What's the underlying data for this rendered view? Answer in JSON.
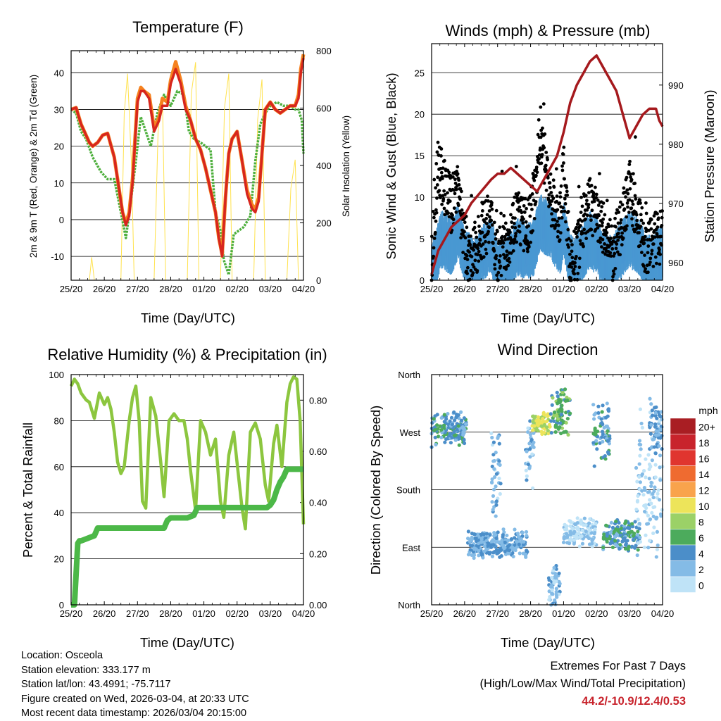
{
  "colors": {
    "temp2m": "#d7261e",
    "temp9m": "#f5821f",
    "dewpoint": "#4daf3c",
    "solar": "#ffe24d",
    "wind": "#4a98d2",
    "gust": "#000000",
    "pressure": "#a5191d",
    "rh": "#8cc63f",
    "precip": "#4cb848",
    "extremes": "#c8232c"
  },
  "x_ticks": [
    "25/20",
    "26/20",
    "27/20",
    "28/20",
    "01/20",
    "02/20",
    "03/20",
    "04/20"
  ],
  "xlabel": "Time (Day/UTC)",
  "chart_data": [
    {
      "type": "line",
      "title": "Temperature (F)",
      "xlabel": "Time (Day/UTC)",
      "ylabel": "2m & 9m T (Red, Orange) & 2m Td (Green)",
      "ylim": [
        -16.5,
        46
      ],
      "yticks": [
        -10,
        0,
        10,
        20,
        30,
        40
      ],
      "y2label": "Solar Insolation (Yellow)",
      "y2lim": [
        0,
        800
      ],
      "y2ticks": [
        0,
        200,
        400,
        600,
        800
      ],
      "x_unit": "days since 25/20 UTC",
      "xlim": [
        0,
        7
      ],
      "series": [
        {
          "name": "2m T",
          "color_key": "temp2m",
          "x": [
            0,
            0.15,
            0.3,
            0.45,
            0.55,
            0.65,
            0.8,
            0.95,
            1.1,
            1.3,
            1.45,
            1.55,
            1.65,
            1.75,
            1.85,
            2.0,
            2.1,
            2.2,
            2.35,
            2.5,
            2.65,
            2.75,
            2.9,
            3.0,
            3.15,
            3.3,
            3.45,
            3.6,
            3.75,
            3.9,
            4.05,
            4.2,
            4.35,
            4.45,
            4.55,
            4.65,
            4.75,
            4.85,
            5.0,
            5.15,
            5.3,
            5.45,
            5.55,
            5.65,
            5.75,
            5.85,
            6.0,
            6.15,
            6.3,
            6.45,
            6.6,
            6.75,
            6.85,
            6.92,
            7.0
          ],
          "values": [
            30,
            30.5,
            26,
            23,
            21,
            20,
            21,
            23,
            23.5,
            17,
            8,
            2,
            -1.5,
            1,
            10,
            32,
            35,
            35,
            33,
            24,
            27,
            31,
            31,
            37,
            41,
            37,
            30,
            27,
            22,
            19,
            14,
            8,
            2,
            -5,
            -10,
            6,
            18,
            22,
            24,
            16,
            7,
            3,
            2,
            5,
            18,
            30,
            32,
            30,
            29,
            30,
            31,
            31,
            33,
            40,
            44
          ]
        },
        {
          "name": "9m T",
          "color_key": "temp9m",
          "x": [
            0,
            0.15,
            0.3,
            0.45,
            0.55,
            0.65,
            0.8,
            0.95,
            1.1,
            1.3,
            1.45,
            1.55,
            1.65,
            1.75,
            1.85,
            2.0,
            2.1,
            2.2,
            2.35,
            2.5,
            2.65,
            2.75,
            2.9,
            3.0,
            3.15,
            3.3,
            3.45,
            3.6,
            3.75,
            3.9,
            4.05,
            4.2,
            4.35,
            4.45,
            4.55,
            4.65,
            4.75,
            4.85,
            5.0,
            5.15,
            5.3,
            5.45,
            5.55,
            5.65,
            5.75,
            5.85,
            6.0,
            6.15,
            6.3,
            6.45,
            6.6,
            6.75,
            6.85,
            6.92,
            7.0
          ],
          "values": [
            30,
            30.5,
            26,
            23,
            21,
            20,
            21,
            23,
            23.5,
            17,
            8,
            2,
            -1,
            2,
            11,
            33,
            36,
            35,
            34,
            25,
            28,
            33,
            32,
            38,
            43,
            38,
            31,
            27,
            22,
            19,
            14,
            8,
            2,
            -5,
            -9.5,
            6,
            18,
            22,
            24,
            16,
            8,
            4,
            3,
            6,
            18,
            30,
            32,
            30,
            29,
            30,
            31,
            31,
            34,
            41,
            45
          ]
        },
        {
          "name": "2m Td",
          "color_key": "dewpoint",
          "x": [
            0,
            0.15,
            0.3,
            0.45,
            0.65,
            0.9,
            1.1,
            1.3,
            1.5,
            1.65,
            1.8,
            1.95,
            2.1,
            2.25,
            2.4,
            2.6,
            2.8,
            3.0,
            3.2,
            3.4,
            3.55,
            3.7,
            3.9,
            4.05,
            4.2,
            4.35,
            4.5,
            4.6,
            4.75,
            4.9,
            5.05,
            5.2,
            5.4,
            5.55,
            5.7,
            5.85,
            6.0,
            6.2,
            6.4,
            6.6,
            6.75,
            6.85,
            6.95,
            7.0
          ],
          "values": [
            30,
            29,
            24,
            22,
            17,
            13,
            11,
            11,
            2,
            -5,
            5,
            16,
            28,
            24,
            20,
            29,
            34,
            31,
            35,
            34,
            24,
            22,
            21,
            20,
            19,
            2,
            -3,
            -11,
            -15,
            -4,
            -3,
            -2,
            1,
            16,
            26,
            29,
            31,
            32,
            31,
            31,
            30,
            30,
            27,
            18
          ]
        },
        {
          "name": "Solar Insolation",
          "axis": "y2",
          "color_key": "solar",
          "x": [
            0.55,
            0.62,
            0.7,
            1.5,
            1.6,
            1.7,
            1.82,
            1.9,
            2.5,
            2.62,
            2.75,
            2.85,
            3.5,
            3.62,
            3.75,
            3.85,
            4.5,
            4.62,
            4.75,
            4.85,
            5.5,
            5.62,
            5.75,
            5.85,
            6.5,
            6.62,
            6.75,
            6.85
          ],
          "values": [
            0,
            80,
            0,
            0,
            580,
            720,
            400,
            0,
            0,
            520,
            640,
            0,
            0,
            650,
            760,
            0,
            0,
            600,
            720,
            0,
            0,
            560,
            700,
            0,
            0,
            320,
            420,
            0
          ]
        }
      ]
    },
    {
      "type": "scatter",
      "title": "Winds (mph) & Pressure (mb)",
      "xlabel": "Time (Day/UTC)",
      "ylabel": "Sonic Wind & Gust (Blue, Black)",
      "ylim": [
        0,
        28.5
      ],
      "yticks": [
        0,
        5,
        10,
        15,
        20,
        25
      ],
      "y2label": "Station Pressure (Maroon)",
      "y2lim": [
        957.0,
        997.0
      ],
      "y2ticks": [
        960,
        970,
        980,
        990
      ],
      "xlim": [
        0,
        7
      ],
      "series": [
        {
          "name": "Sonic Wind (mean)",
          "color_key": "wind",
          "x": [
            0,
            0.3,
            0.6,
            0.8,
            1.0,
            1.3,
            1.5,
            1.8,
            2.0,
            2.3,
            2.6,
            2.9,
            3.1,
            3.3,
            3.6,
            3.9,
            4.0,
            4.2,
            4.4,
            4.6,
            4.8,
            5.0,
            5.3,
            5.5,
            5.8,
            6.0,
            6.3,
            6.5,
            6.7,
            6.9,
            7.0
          ],
          "values": [
            1,
            5,
            4,
            6,
            3,
            1.5,
            3,
            4.5,
            1,
            2,
            4,
            3.5,
            4,
            7,
            6,
            4,
            6.5,
            2,
            2,
            3.5,
            5,
            4,
            2,
            2,
            4,
            5,
            4,
            2,
            2,
            3,
            3
          ]
        },
        {
          "name": "Gust (mean)",
          "color_key": "gust",
          "x": [
            0,
            0.2,
            0.4,
            0.6,
            0.8,
            1.0,
            1.2,
            1.5,
            1.8,
            2.0,
            2.3,
            2.6,
            2.9,
            3.1,
            3.3,
            3.6,
            3.9,
            4.0,
            4.2,
            4.4,
            4.6,
            4.8,
            5.0,
            5.3,
            5.5,
            5.8,
            6.0,
            6.3,
            6.5,
            6.7,
            6.9,
            7.0
          ],
          "values": [
            2,
            14,
            11,
            9,
            12,
            4,
            2,
            6,
            7,
            3,
            5,
            8,
            6,
            10,
            18,
            10,
            7,
            13,
            2,
            3,
            7,
            9,
            8,
            5,
            3,
            8,
            11,
            7,
            3,
            5,
            5,
            5
          ]
        },
        {
          "name": "Station Pressure",
          "axis": "y2",
          "color_key": "pressure",
          "x": [
            0,
            0.2,
            0.4,
            0.6,
            0.8,
            1.0,
            1.2,
            1.5,
            1.8,
            2.0,
            2.2,
            2.4,
            2.6,
            2.8,
            3.0,
            3.2,
            3.4,
            3.6,
            3.8,
            4.0,
            4.2,
            4.4,
            4.6,
            4.8,
            5.0,
            5.2,
            5.4,
            5.6,
            5.8,
            6.0,
            6.2,
            6.4,
            6.6,
            6.8,
            6.9,
            7.0
          ],
          "values": [
            958,
            962,
            964,
            966,
            967,
            968,
            970,
            972,
            974,
            975,
            975,
            976,
            975,
            974,
            973,
            972,
            974,
            976,
            978,
            982,
            987,
            990,
            992,
            994,
            995,
            993,
            991,
            989,
            985,
            981,
            983,
            985,
            986,
            986,
            984,
            983
          ]
        }
      ]
    },
    {
      "type": "line",
      "title": "Relative Humidity (%) & Precipitation (in)",
      "xlabel": "Time (Day/UTC)",
      "ylabel": "Percent & Total Rainfall",
      "ylim": [
        0,
        100
      ],
      "yticks": [
        0,
        20,
        40,
        60,
        80,
        100
      ],
      "y2lim": [
        0,
        0.9
      ],
      "y2ticks": [
        "0.00",
        "0.20",
        "0.40",
        "0.60",
        "0.80"
      ],
      "xlim": [
        0,
        7
      ],
      "series": [
        {
          "name": "Relative Humidity",
          "color_key": "rh",
          "x": [
            0,
            0.1,
            0.2,
            0.3,
            0.45,
            0.55,
            0.7,
            0.85,
            1.0,
            1.1,
            1.2,
            1.3,
            1.4,
            1.5,
            1.6,
            1.75,
            1.85,
            1.95,
            2.05,
            2.15,
            2.25,
            2.4,
            2.55,
            2.7,
            2.8,
            2.95,
            3.1,
            3.25,
            3.4,
            3.5,
            3.6,
            3.75,
            3.9,
            4.05,
            4.2,
            4.35,
            4.5,
            4.6,
            4.75,
            4.9,
            5.05,
            5.15,
            5.25,
            5.4,
            5.55,
            5.7,
            5.85,
            5.95,
            6.1,
            6.2,
            6.35,
            6.5,
            6.6,
            6.7,
            6.8,
            6.9,
            7.0
          ],
          "values": [
            95,
            98,
            96,
            92,
            89,
            88,
            81,
            92,
            87,
            90,
            85,
            75,
            62,
            57,
            60,
            80,
            90,
            95,
            80,
            45,
            42,
            90,
            82,
            62,
            47,
            80,
            83,
            80,
            80,
            72,
            58,
            41,
            80,
            75,
            65,
            72,
            45,
            38,
            65,
            75,
            55,
            42,
            33,
            75,
            79,
            72,
            52,
            45,
            70,
            78,
            60,
            88,
            96,
            99,
            98,
            80,
            35
          ]
        },
        {
          "name": "Total Precipitation",
          "axis": "y2",
          "color_key": "precip",
          "x": [
            0,
            0.1,
            0.2,
            0.25,
            0.3,
            0.5,
            0.7,
            0.8,
            1.0,
            1.5,
            2.0,
            2.5,
            2.8,
            2.9,
            3.0,
            3.2,
            3.5,
            3.7,
            3.8,
            3.9,
            4.0,
            4.5,
            5.0,
            5.5,
            5.9,
            6.0,
            6.1,
            6.2,
            6.3,
            6.4,
            6.5,
            6.7,
            6.9,
            7.0
          ],
          "values": [
            0,
            0,
            0.24,
            0.25,
            0.25,
            0.26,
            0.27,
            0.3,
            0.3,
            0.3,
            0.3,
            0.3,
            0.3,
            0.33,
            0.34,
            0.34,
            0.34,
            0.35,
            0.38,
            0.38,
            0.38,
            0.38,
            0.38,
            0.38,
            0.38,
            0.39,
            0.41,
            0.45,
            0.48,
            0.5,
            0.53,
            0.53,
            0.53,
            0.53
          ]
        }
      ]
    },
    {
      "type": "scatter",
      "title": "Wind Direction",
      "xlabel": "Time (Day/UTC)",
      "ylabel": "Direction (Colored By Speed)",
      "yticks": [
        "North",
        "West",
        "South",
        "East",
        "North"
      ],
      "ylim_degrees": [
        360,
        0
      ],
      "xlim": [
        0,
        7
      ],
      "color_scale": {
        "title": "mph",
        "labels": [
          "20+",
          "18",
          "16",
          "14",
          "12",
          "10",
          "8",
          "6",
          "4",
          "2",
          "0"
        ],
        "colors": [
          "#a91e23",
          "#c8232c",
          "#e0352f",
          "#ef6b30",
          "#f9a34c",
          "#ede45a",
          "#9bd167",
          "#4cab5c",
          "#4b8ec9",
          "#84bbe6",
          "#bfe3f7"
        ]
      },
      "clusters": [
        {
          "x_start": 0.0,
          "x_end": 1.05,
          "dir_center": 275,
          "dir_spread": 30,
          "speed": 4
        },
        {
          "x_start": 1.1,
          "x_end": 2.9,
          "dir_center": 95,
          "dir_spread": 25,
          "speed": 3
        },
        {
          "x_start": 1.8,
          "x_end": 2.1,
          "dir_center": 200,
          "dir_spread": 80,
          "speed": 2
        },
        {
          "x_start": 2.85,
          "x_end": 3.1,
          "dir_center": 245,
          "dir_spread": 70,
          "speed": 2
        },
        {
          "x_start": 3.05,
          "x_end": 3.6,
          "dir_center": 285,
          "dir_spread": 20,
          "speed": 9
        },
        {
          "x_start": 3.6,
          "x_end": 4.2,
          "dir_center": 300,
          "dir_spread": 45,
          "speed": 6
        },
        {
          "x_start": 3.55,
          "x_end": 3.9,
          "dir_center": 30,
          "dir_spread": 35,
          "speed": 2
        },
        {
          "x_start": 4.0,
          "x_end": 5.0,
          "dir_center": 115,
          "dir_spread": 25,
          "speed": 1
        },
        {
          "x_start": 4.9,
          "x_end": 5.4,
          "dir_center": 270,
          "dir_spread": 60,
          "speed": 4
        },
        {
          "x_start": 5.2,
          "x_end": 6.3,
          "dir_center": 108,
          "dir_spread": 25,
          "speed": 4
        },
        {
          "x_start": 6.2,
          "x_end": 7.0,
          "dir_center": 175,
          "dir_spread": 140,
          "speed": 1
        },
        {
          "x_start": 6.6,
          "x_end": 7.0,
          "dir_center": 280,
          "dir_spread": 50,
          "speed": 3
        }
      ]
    }
  ],
  "footer": {
    "location": "Location: Osceola",
    "elevation": "Station elevation: 333.177 m",
    "latlon": "Station lat/lon: 43.4991; -75.7117",
    "created": "Figure created on Wed, 2026-03-04, at 20:33 UTC",
    "timestamp": "Most recent data timestamp: 2026/03/04 20:15:00"
  },
  "extremes": {
    "line1": "Extremes For Past 7 Days",
    "line2": "(High/Low/Max Wind/Total Precipitation)",
    "values": "44.2/-10.9/12.4/0.53"
  }
}
